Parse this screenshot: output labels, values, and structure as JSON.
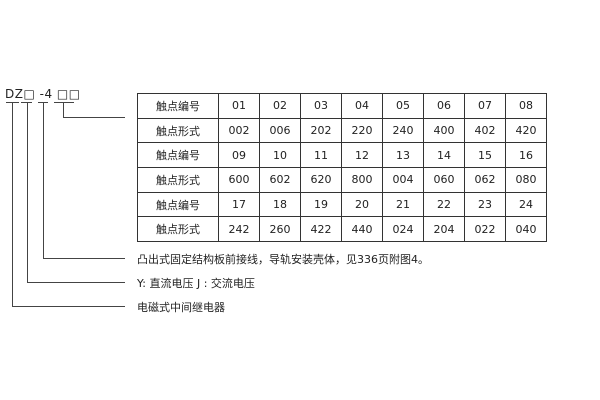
{
  "model_code": "DZ□ -4 □□",
  "table": {
    "rows": [
      {
        "label": "触点编号",
        "values": [
          "01",
          "02",
          "03",
          "04",
          "05",
          "06",
          "07",
          "08"
        ]
      },
      {
        "label": "触点形式",
        "values": [
          "002",
          "006",
          "202",
          "220",
          "240",
          "400",
          "402",
          "420"
        ]
      },
      {
        "label": "触点编号",
        "values": [
          "09",
          "10",
          "11",
          "12",
          "13",
          "14",
          "15",
          "16"
        ]
      },
      {
        "label": "触点形式",
        "values": [
          "600",
          "602",
          "620",
          "800",
          "004",
          "060",
          "062",
          "080"
        ]
      },
      {
        "label": "触点编号",
        "values": [
          "17",
          "18",
          "19",
          "20",
          "21",
          "22",
          "23",
          "24"
        ]
      },
      {
        "label": "触点形式",
        "values": [
          "242",
          "260",
          "422",
          "440",
          "024",
          "204",
          "022",
          "040"
        ]
      }
    ]
  },
  "notes": [
    "凸出式固定结构板前接线，导轨安装壳体，见336页附图4。",
    "Y: 直流电压   J : 交流电压",
    "电磁式中间继电器"
  ]
}
